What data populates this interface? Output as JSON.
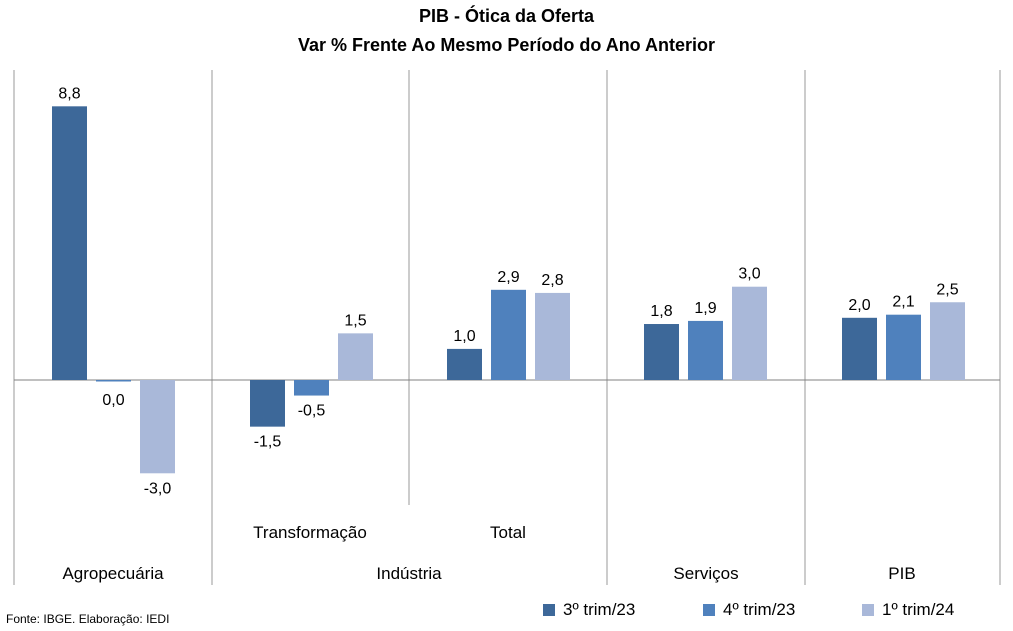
{
  "chart_data": {
    "type": "bar",
    "title": "PIB - Ótica da Oferta",
    "subtitle": "Var % Frente Ao Mesmo Período do Ano Anterior",
    "groups": [
      {
        "label": "Agropecuária",
        "subcategories": [
          ""
        ]
      },
      {
        "label": "Indústria",
        "subcategories": [
          "Transformação",
          "Total"
        ]
      },
      {
        "label": "Serviços",
        "subcategories": [
          ""
        ]
      },
      {
        "label": "PIB",
        "subcategories": [
          ""
        ]
      }
    ],
    "categories": [
      "Agropecuária",
      "Transformação",
      "Total",
      "Serviços",
      "PIB"
    ],
    "series": [
      {
        "name": "3º trim/23",
        "color": "#3D6899",
        "values": [
          8.8,
          -1.5,
          1.0,
          1.8,
          2.0
        ],
        "labels": [
          "8,8",
          "-1,5",
          "1,0",
          "1,8",
          "2,0"
        ]
      },
      {
        "name": "4º trim/23",
        "color": "#4F81BD",
        "values": [
          0.0,
          -0.5,
          2.9,
          1.9,
          2.1
        ],
        "labels": [
          "0,0",
          "-0,5",
          "2,9",
          "1,9",
          "2,1"
        ]
      },
      {
        "name": "1º trim/24",
        "color": "#A9B8D9",
        "values": [
          -3.0,
          1.5,
          2.8,
          3.0,
          2.5
        ],
        "labels": [
          "-3,0",
          "1,5",
          "2,8",
          "3,0",
          "2,5"
        ]
      }
    ],
    "legend_position": "bottom-right",
    "grid": false
  },
  "footer": {
    "source": "Fonte: IBGE. Elaboração: IEDI"
  }
}
